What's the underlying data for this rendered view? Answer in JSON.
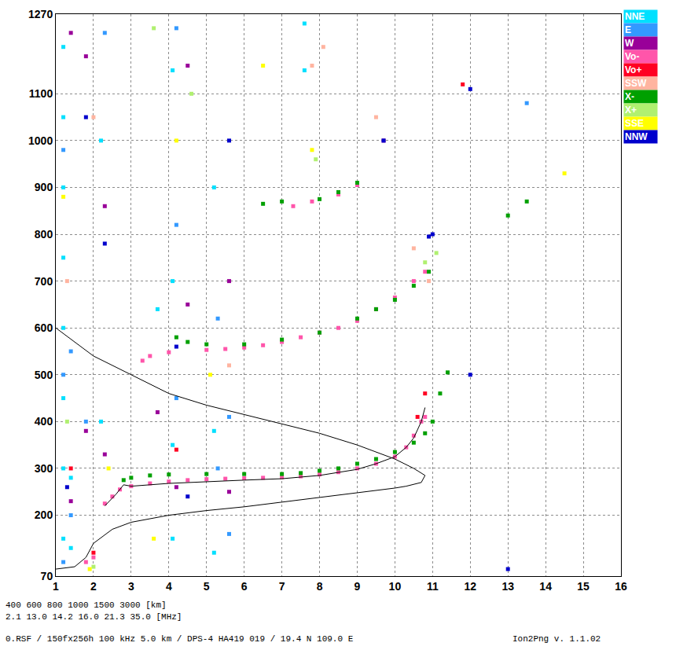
{
  "chart_data": {
    "type": "scatter",
    "xlim": [
      1,
      16
    ],
    "ylim": [
      70,
      1270
    ],
    "xticks": [
      1,
      2,
      3,
      4,
      5,
      6,
      7,
      8,
      9,
      10,
      11,
      12,
      13,
      14,
      15,
      16
    ],
    "yticks": [
      70,
      200,
      300,
      400,
      500,
      600,
      700,
      800,
      900,
      1000,
      1100,
      1270
    ],
    "grid": true,
    "marker": "square",
    "legend": "right",
    "annotations": [
      "400 600 800 1000 1500 3000 [km]",
      "2.1 13.0 14.2 16.0 21.3 35.0 [MHz]",
      "0.RSF / 150fx256h 100 kHz 5.0 km / DPS-4 HA419 019 / 19.4 N 109.0 E",
      "Ion2Png v. 1.1.02"
    ],
    "series": [
      {
        "name": "NNE",
        "color": "#00e0ff",
        "x": [
          1.2,
          1.2,
          1.2,
          1.2,
          1.2,
          1.2,
          1.2,
          1.2,
          4.1,
          4.1,
          4.1,
          4.1,
          5.2,
          5.2,
          5.2,
          2.2,
          2.2,
          7.6,
          7.6,
          1.4,
          1.4,
          3.7
        ],
        "values": [
          150,
          300,
          450,
          600,
          750,
          900,
          1050,
          1200,
          150,
          350,
          700,
          1150,
          120,
          380,
          900,
          400,
          1000,
          1150,
          1250,
          130,
          280,
          640
        ]
      },
      {
        "name": "E",
        "color": "#3399ff",
        "x": [
          1.2,
          1.2,
          1.2,
          1.4,
          1.4,
          4.2,
          4.2,
          4.2,
          5.3,
          5.3,
          5.6,
          5.6,
          2.3,
          1.8,
          13.5
        ],
        "values": [
          100,
          500,
          980,
          200,
          550,
          450,
          820,
          1240,
          300,
          620,
          160,
          410,
          1230,
          400,
          1080
        ]
      },
      {
        "name": "W",
        "color": "#990099",
        "x": [
          1.4,
          1.4,
          1.8,
          1.8,
          2.3,
          2.3,
          4.2,
          4.5,
          4.5,
          5.6,
          5.6,
          3.7,
          9.7
        ],
        "values": [
          230,
          1230,
          380,
          1180,
          330,
          860,
          260,
          650,
          1160,
          250,
          700,
          420,
          1000
        ]
      },
      {
        "name": "Vo-",
        "color": "#ff55aa",
        "x": [
          2.3,
          2.5,
          2.7,
          3.0,
          3.5,
          4.0,
          4.5,
          5.0,
          5.5,
          6.0,
          6.5,
          7.0,
          7.5,
          8.0,
          8.5,
          9.0,
          9.5,
          10.0,
          10.3,
          10.5,
          10.7,
          10.8,
          3.3,
          3.5,
          4.0,
          5.0,
          5.5,
          6.0,
          6.5,
          7.0,
          7.5,
          8.0,
          8.5,
          9.0,
          9.5,
          10.0,
          10.5,
          10.8,
          7.3,
          7.8,
          8.5,
          9.0,
          1.8,
          2.0
        ],
        "values": [
          225,
          240,
          255,
          262,
          268,
          272,
          275,
          277,
          278,
          279,
          280,
          281,
          283,
          287,
          292,
          300,
          310,
          325,
          345,
          370,
          400,
          410,
          530,
          540,
          548,
          553,
          555,
          558,
          563,
          570,
          580,
          590,
          600,
          615,
          640,
          665,
          700,
          720,
          860,
          870,
          885,
          905,
          100,
          110
        ]
      },
      {
        "name": "Vo+",
        "color": "#ff0022",
        "x": [
          10.8,
          11.8,
          2.0,
          4.2,
          1.4,
          10.6
        ],
        "values": [
          460,
          1120,
          120,
          340,
          300,
          410
        ]
      },
      {
        "name": "SSW",
        "color": "#ffb4a0",
        "x": [
          1.3,
          2.0,
          8.1,
          9.5,
          10.5,
          10.9,
          5.6,
          7.8
        ],
        "values": [
          700,
          1050,
          1200,
          1050,
          770,
          700,
          520,
          1160
        ]
      },
      {
        "name": "X-",
        "color": "#00a000",
        "x": [
          2.8,
          3.0,
          3.5,
          4.0,
          5.0,
          6.0,
          7.0,
          7.5,
          8.0,
          8.5,
          9.0,
          9.5,
          10.0,
          10.5,
          10.8,
          11.0,
          11.2,
          11.4,
          4.2,
          4.5,
          5.0,
          6.0,
          7.0,
          8.0,
          9.0,
          9.5,
          10.0,
          10.5,
          10.9,
          6.5,
          7.0,
          8.0,
          8.5,
          9.0,
          13.0,
          13.5
        ],
        "values": [
          275,
          280,
          285,
          287,
          288,
          288,
          288,
          290,
          295,
          300,
          310,
          320,
          335,
          355,
          375,
          400,
          460,
          505,
          580,
          570,
          565,
          565,
          575,
          590,
          620,
          640,
          660,
          690,
          720,
          865,
          870,
          875,
          890,
          910,
          840,
          870
        ]
      },
      {
        "name": "X+",
        "color": "#b0f070",
        "x": [
          2.0,
          11.1,
          10.8,
          7.9,
          3.6,
          4.6,
          1.3
        ],
        "values": [
          90,
          760,
          740,
          960,
          1240,
          1100,
          400
        ]
      },
      {
        "name": "SSE",
        "color": "#ffff00",
        "x": [
          1.2,
          1.9,
          3.6,
          4.2,
          5.1,
          7.8,
          14.5,
          2.4,
          6.5
        ],
        "values": [
          880,
          85,
          150,
          1000,
          500,
          980,
          930,
          300,
          1160
        ]
      },
      {
        "name": "NNW",
        "color": "#0000cc",
        "x": [
          1.3,
          1.8,
          2.3,
          4.2,
          4.5,
          5.6,
          12.0,
          12.0,
          11.0,
          13.0,
          9.7,
          10.9
        ],
        "values": [
          260,
          1050,
          780,
          560,
          240,
          1000,
          1110,
          500,
          800,
          85,
          1000,
          795
        ]
      },
      {
        "type": "line",
        "color": "#000000",
        "x": [
          1.0,
          2.0,
          3.0,
          4.0,
          5.0,
          6.0,
          7.0,
          8.0,
          9.0,
          10.0,
          10.5,
          10.8,
          10.7,
          10.3,
          10.0,
          9.0,
          8.0,
          7.0,
          6.0,
          5.0,
          4.0,
          3.0,
          2.5,
          2.0,
          1.8,
          1.5,
          1.0
        ],
        "values": [
          600,
          540,
          500,
          460,
          435,
          415,
          395,
          375,
          350,
          320,
          300,
          285,
          270,
          262,
          258,
          248,
          238,
          228,
          218,
          210,
          200,
          185,
          170,
          140,
          110,
          90,
          85
        ]
      },
      {
        "type": "line",
        "color": "#000000",
        "x": [
          2.3,
          2.6,
          2.8,
          3.0,
          4.0,
          5.0,
          6.0,
          7.0,
          8.0,
          9.0,
          9.5,
          10.0,
          10.3,
          10.5,
          10.7,
          10.8
        ],
        "values": [
          220,
          245,
          265,
          262,
          268,
          272,
          275,
          278,
          285,
          298,
          310,
          325,
          345,
          365,
          400,
          430
        ]
      }
    ]
  }
}
